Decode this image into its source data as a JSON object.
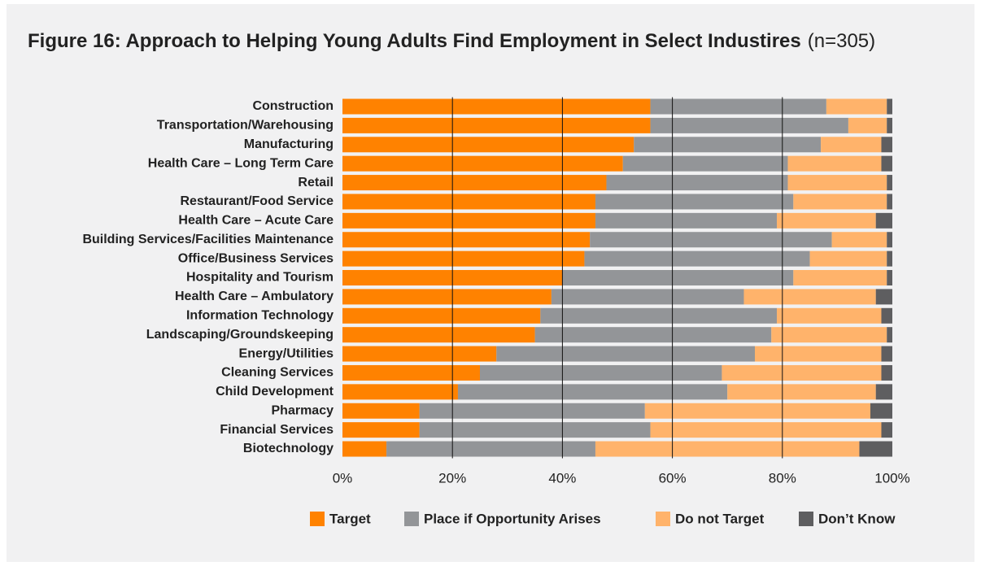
{
  "chart_data": {
    "type": "stacked_bar_horizontal",
    "title": "Figure 16: Approach to Helping Young Adults Find Employment in Select Industires",
    "title_note": "(n=305)",
    "categories": [
      "Construction",
      "Transportation/Warehousing",
      "Manufacturing",
      "Health Care – Long Term Care",
      "Retail",
      "Restaurant/Food Service",
      "Health Care – Acute Care",
      "Building Services/Facilities Maintenance",
      "Office/Business Services",
      "Hospitality and Tourism",
      "Health Care – Ambulatory",
      "Information Technology",
      "Landscaping/Groundskeeping",
      "Energy/Utilities",
      "Cleaning Services",
      "Child Development",
      "Pharmacy",
      "Financial Services",
      "Biotechnology"
    ],
    "series": [
      {
        "name": "Target",
        "color": "#ff8200",
        "values": [
          56,
          56,
          53,
          51,
          48,
          46,
          46,
          45,
          44,
          40,
          38,
          36,
          35,
          28,
          25,
          21,
          14,
          14,
          8
        ]
      },
      {
        "name": "Place if Opportunity Arises",
        "color": "#939598",
        "values": [
          32,
          36,
          34,
          30,
          33,
          36,
          33,
          44,
          41,
          42,
          35,
          43,
          43,
          47,
          44,
          49,
          41,
          42,
          38
        ]
      },
      {
        "name": "Do not Target",
        "color": "#ffb36b",
        "values": [
          11,
          7,
          11,
          17,
          18,
          17,
          18,
          10,
          14,
          17,
          24,
          19,
          21,
          23,
          29,
          27,
          41,
          42,
          48
        ]
      },
      {
        "name": "Don’t Know",
        "color": "#5e5e60",
        "values": [
          1,
          1,
          2,
          2,
          1,
          1,
          3,
          1,
          1,
          1,
          3,
          2,
          1,
          2,
          2,
          3,
          4,
          2,
          6
        ]
      }
    ],
    "xlim": [
      0,
      100
    ],
    "xticks": [
      {
        "value": 0,
        "label": "0%"
      },
      {
        "value": 20,
        "label": "20%"
      },
      {
        "value": 40,
        "label": "40%"
      },
      {
        "value": 60,
        "label": "60%"
      },
      {
        "value": 80,
        "label": "80%"
      },
      {
        "value": 100,
        "label": "100%"
      }
    ],
    "grid": true,
    "legend": "bottom"
  }
}
